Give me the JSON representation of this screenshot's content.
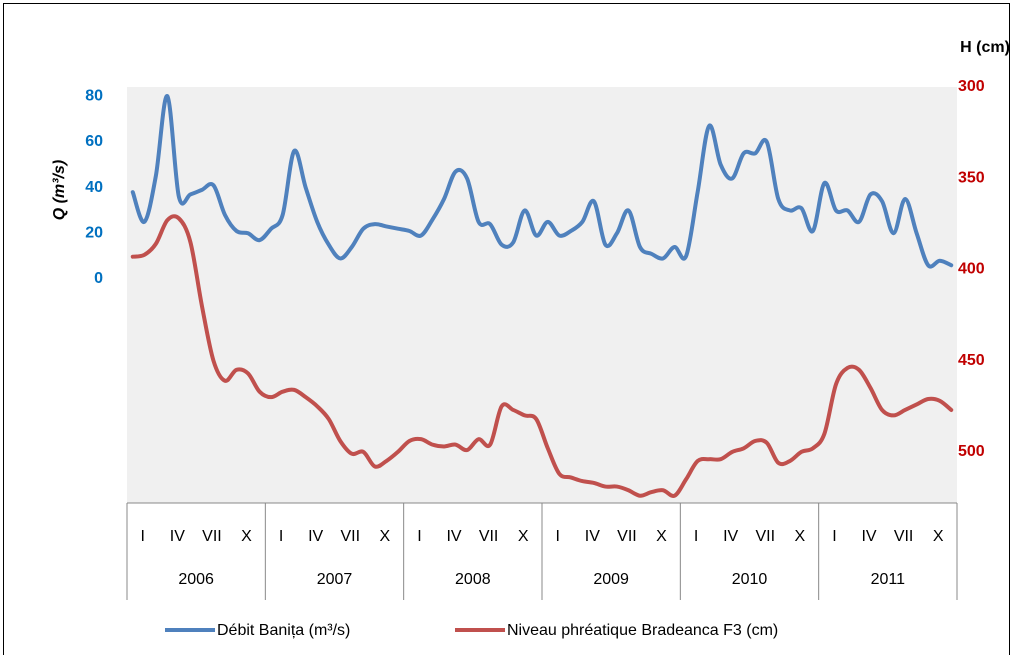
{
  "chart_data": {
    "type": "line",
    "y_label": "Q (m³/s)",
    "y2_label": "H (cm)",
    "categories": [
      "I",
      null,
      null,
      "IV",
      null,
      null,
      "VII",
      null,
      null,
      "X",
      null,
      null,
      "I",
      null,
      null,
      "IV",
      null,
      null,
      "VII",
      null,
      null,
      "X",
      null,
      null,
      "I",
      null,
      null,
      "IV",
      null,
      null,
      "VII",
      null,
      null,
      "X",
      null,
      null,
      "I",
      null,
      null,
      "IV",
      null,
      null,
      "VII",
      null,
      null,
      "X",
      null,
      null,
      "I",
      null,
      null,
      "IV",
      null,
      null,
      "VII",
      null,
      null,
      "X",
      null,
      null,
      "I",
      null,
      null,
      "IV",
      null,
      null,
      "VII",
      null,
      null,
      "X",
      null,
      null
    ],
    "year_labels": [
      "2006",
      "2007",
      "2008",
      "2009",
      "2010",
      "2011"
    ],
    "series": [
      {
        "name": "Débit Banița (m³/s)",
        "color": "#4f81bd",
        "axis": "y",
        "values": [
          38,
          25,
          45,
          80,
          36,
          37,
          39,
          41,
          28,
          21,
          20,
          17,
          22,
          28,
          56,
          40,
          25,
          15,
          9,
          14,
          22,
          24,
          23,
          22,
          21,
          19,
          26,
          35,
          47,
          44,
          25,
          24,
          15,
          16,
          30,
          19,
          25,
          19,
          21,
          25,
          34,
          15,
          20,
          30,
          14,
          11,
          9,
          14,
          10,
          38,
          67,
          50,
          44,
          55,
          55,
          60,
          35,
          30,
          31,
          21,
          42,
          30,
          30,
          25,
          37,
          34,
          20,
          35,
          20,
          6,
          8,
          6
        ]
      },
      {
        "name": "Niveau phréatique Bradeanca F3 (cm)",
        "color": "#c0504d",
        "axis": "y2",
        "values": [
          393,
          392,
          386,
          373,
          372,
          385,
          420,
          450,
          461,
          455,
          457,
          467,
          470,
          467,
          466,
          470,
          475,
          482,
          494,
          501,
          500,
          508,
          505,
          500,
          494,
          493,
          496,
          497,
          496,
          499,
          493,
          496,
          475,
          477,
          480,
          482,
          498,
          512,
          514,
          516,
          517,
          519,
          519,
          521,
          524,
          522,
          521,
          524,
          515,
          505,
          504,
          504,
          500,
          498,
          494,
          495,
          506,
          505,
          500,
          498,
          490,
          463,
          454,
          455,
          465,
          477,
          480,
          477,
          474,
          471,
          472,
          477
        ]
      }
    ],
    "ylim": [
      -98,
      84
    ],
    "yticks": [
      0,
      20,
      40,
      60,
      80
    ],
    "ytick_color": "#0070c0",
    "y2lim": [
      528,
      300
    ],
    "y2ticks": [
      300,
      350,
      400,
      450,
      500
    ],
    "y2tick_color": "#c00000",
    "grid": false,
    "plot_background": "#f0f0f0",
    "legend": "bottom"
  }
}
